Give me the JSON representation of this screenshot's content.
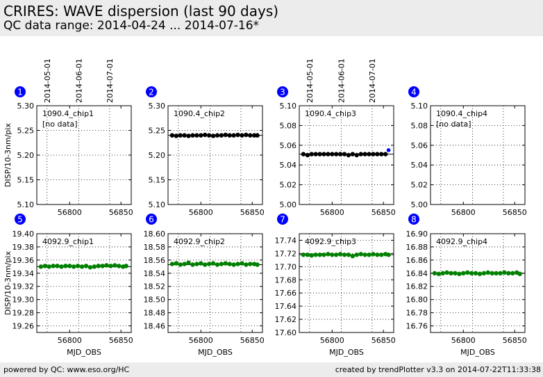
{
  "header": {
    "title": "CRIRES: WAVE dispersion (last 90 days)",
    "subtitle": "QC data range: 2014-04-24 ... 2014-07-16*"
  },
  "footer": {
    "left": "powered by QC: www.eso.org/HC",
    "right": "created by trendPlotter v3.3 on 2014-07-22T11:33:38"
  },
  "colors": {
    "marker_row1": "#000000",
    "marker_row2": "#008000",
    "outlier": "#0000ff",
    "badge": "#0000ff",
    "header_bg": "#ececec"
  },
  "chart_data": [
    {
      "type": "scatter",
      "panel": "1",
      "label": "1090.4_chip1",
      "note": "[no data]",
      "xticks": [
        "56800",
        "56850"
      ],
      "date_ticks": [
        "2014-05-01",
        "2014-06-01",
        "2014-07-01"
      ],
      "ylabel": "DISP/10-3nm/pix",
      "xlabel": "",
      "ylim": [
        5.1,
        5.3
      ],
      "yticks": [
        "5.10",
        "5.15",
        "5.20",
        "5.25",
        "5.30"
      ],
      "xlim": [
        56768,
        56860
      ],
      "reference": null,
      "outliers": [],
      "series": [
        {
          "x": [],
          "y": []
        }
      ]
    },
    {
      "type": "scatter",
      "panel": "2",
      "label": "1090.4_chip2",
      "note": "",
      "xticks": [
        "56800",
        "56850"
      ],
      "date_ticks": [],
      "ylabel": "",
      "xlabel": "",
      "ylim": [
        5.1,
        5.3
      ],
      "yticks": [
        "5.10",
        "5.15",
        "5.20",
        "5.25",
        "5.30"
      ],
      "xlim": [
        56768,
        56860
      ],
      "reference": 5.24,
      "outliers": [],
      "series": [
        {
          "x": [
            56772,
            56776,
            56780,
            56784,
            56788,
            56792,
            56796,
            56800,
            56804,
            56808,
            56812,
            56816,
            56820,
            56824,
            56828,
            56832,
            56836,
            56840,
            56844,
            56848,
            56852,
            56855
          ],
          "y": [
            5.24,
            5.239,
            5.24,
            5.24,
            5.239,
            5.24,
            5.24,
            5.24,
            5.241,
            5.24,
            5.239,
            5.24,
            5.24,
            5.241,
            5.24,
            5.24,
            5.241,
            5.24,
            5.241,
            5.24,
            5.24,
            5.24
          ]
        }
      ]
    },
    {
      "type": "scatter",
      "panel": "3",
      "label": "1090.4_chip3",
      "note": "",
      "xticks": [
        "56800",
        "56850"
      ],
      "date_ticks": [
        "2014-05-01",
        "2014-06-01",
        "2014-07-01"
      ],
      "ylabel": "",
      "xlabel": "",
      "ylim": [
        5.0,
        5.1
      ],
      "yticks": [
        "5.00",
        "5.02",
        "5.04",
        "5.06",
        "5.08",
        "5.10"
      ],
      "xlim": [
        56768,
        56860
      ],
      "reference": 5.051,
      "outliers": [
        {
          "x": 56855,
          "y": 5.055
        }
      ],
      "series": [
        {
          "x": [
            56772,
            56776,
            56780,
            56784,
            56788,
            56792,
            56796,
            56800,
            56804,
            56808,
            56812,
            56816,
            56820,
            56824,
            56828,
            56832,
            56836,
            56840,
            56844,
            56848,
            56852
          ],
          "y": [
            5.051,
            5.05,
            5.051,
            5.051,
            5.051,
            5.051,
            5.051,
            5.051,
            5.051,
            5.051,
            5.051,
            5.05,
            5.051,
            5.05,
            5.051,
            5.051,
            5.051,
            5.051,
            5.051,
            5.051,
            5.051
          ]
        }
      ]
    },
    {
      "type": "scatter",
      "panel": "4",
      "label": "1090.4_chip4",
      "note": "[no data]",
      "xticks": [
        "56800",
        "56850"
      ],
      "date_ticks": [],
      "ylabel": "",
      "xlabel": "",
      "ylim": [
        5.0,
        5.1
      ],
      "yticks": [
        "5.00",
        "5.02",
        "5.04",
        "5.06",
        "5.08",
        "5.10"
      ],
      "xlim": [
        56768,
        56860
      ],
      "reference": null,
      "outliers": [],
      "series": [
        {
          "x": [],
          "y": []
        }
      ]
    },
    {
      "type": "scatter",
      "panel": "5",
      "label": "4092.9_chip1",
      "note": "",
      "xticks": [
        "56800",
        "56850"
      ],
      "date_ticks": [],
      "ylabel": "DISP/10-3nm/pix",
      "xlabel": "MJD_OBS",
      "ylim": [
        19.25,
        19.4
      ],
      "yticks": [
        "19.26",
        "19.28",
        "19.30",
        "19.32",
        "19.34",
        "19.36",
        "19.38",
        "19.40"
      ],
      "xlim": [
        56768,
        56860
      ],
      "reference": 19.35,
      "outliers": [],
      "series": [
        {
          "x": [
            56772,
            56776,
            56780,
            56784,
            56788,
            56792,
            56796,
            56800,
            56804,
            56808,
            56812,
            56816,
            56820,
            56824,
            56828,
            56832,
            56836,
            56840,
            56844,
            56848,
            56852,
            56855
          ],
          "y": [
            19.35,
            19.351,
            19.35,
            19.351,
            19.351,
            19.35,
            19.351,
            19.351,
            19.35,
            19.351,
            19.35,
            19.351,
            19.349,
            19.35,
            19.351,
            19.351,
            19.352,
            19.351,
            19.352,
            19.351,
            19.35,
            19.351
          ]
        }
      ]
    },
    {
      "type": "scatter",
      "panel": "6",
      "label": "4092.9_chip2",
      "note": "",
      "xticks": [
        "56800",
        "56850"
      ],
      "date_ticks": [],
      "ylabel": "",
      "xlabel": "MJD_OBS",
      "ylim": [
        18.45,
        18.6
      ],
      "yticks": [
        "18.46",
        "18.48",
        "18.50",
        "18.52",
        "18.54",
        "18.56",
        "18.58",
        "18.60"
      ],
      "xlim": [
        56768,
        56860
      ],
      "reference": 18.553,
      "outliers": [],
      "series": [
        {
          "x": [
            56772,
            56776,
            56780,
            56784,
            56788,
            56792,
            56796,
            56800,
            56804,
            56808,
            56812,
            56816,
            56820,
            56824,
            56828,
            56832,
            56836,
            56840,
            56844,
            56848,
            56852,
            56855
          ],
          "y": [
            18.554,
            18.555,
            18.553,
            18.554,
            18.556,
            18.553,
            18.554,
            18.555,
            18.553,
            18.554,
            18.555,
            18.553,
            18.554,
            18.555,
            18.554,
            18.553,
            18.554,
            18.555,
            18.553,
            18.554,
            18.554,
            18.553
          ]
        }
      ]
    },
    {
      "type": "scatter",
      "panel": "7",
      "label": "4092.9_chip3",
      "note": "",
      "xticks": [
        "56800",
        "56850"
      ],
      "date_ticks": [],
      "ylabel": "",
      "xlabel": "MJD_OBS",
      "ylim": [
        17.6,
        17.75
      ],
      "yticks": [
        "17.60",
        "17.62",
        "17.64",
        "17.66",
        "17.68",
        "17.70",
        "17.72",
        "17.74"
      ],
      "xlim": [
        56768,
        56860
      ],
      "reference": 17.718,
      "outliers": [],
      "series": [
        {
          "x": [
            56772,
            56776,
            56780,
            56784,
            56788,
            56792,
            56796,
            56800,
            56804,
            56808,
            56812,
            56816,
            56820,
            56824,
            56828,
            56832,
            56836,
            56840,
            56844,
            56848,
            56852,
            56855
          ],
          "y": [
            17.718,
            17.718,
            17.717,
            17.718,
            17.718,
            17.718,
            17.719,
            17.718,
            17.718,
            17.719,
            17.718,
            17.718,
            17.716,
            17.718,
            17.719,
            17.718,
            17.718,
            17.719,
            17.718,
            17.718,
            17.719,
            17.718
          ]
        }
      ]
    },
    {
      "type": "scatter",
      "panel": "8",
      "label": "4092.9_chip4",
      "note": "",
      "xticks": [
        "56800",
        "56850"
      ],
      "date_ticks": [],
      "ylabel": "",
      "xlabel": "MJD_OBS",
      "ylim": [
        16.75,
        16.9
      ],
      "yticks": [
        "16.76",
        "16.78",
        "16.80",
        "16.82",
        "16.84",
        "16.86",
        "16.88",
        "16.90"
      ],
      "xlim": [
        56768,
        56860
      ],
      "reference": 16.84,
      "outliers": [],
      "series": [
        {
          "x": [
            56772,
            56776,
            56780,
            56784,
            56788,
            56792,
            56796,
            56800,
            56804,
            56808,
            56812,
            56816,
            56820,
            56824,
            56828,
            56832,
            56836,
            56840,
            56844,
            56848,
            56852,
            56855
          ],
          "y": [
            16.84,
            16.839,
            16.84,
            16.841,
            16.84,
            16.84,
            16.839,
            16.84,
            16.841,
            16.84,
            16.84,
            16.839,
            16.84,
            16.841,
            16.84,
            16.84,
            16.84,
            16.841,
            16.84,
            16.84,
            16.841,
            16.839
          ]
        }
      ]
    }
  ]
}
